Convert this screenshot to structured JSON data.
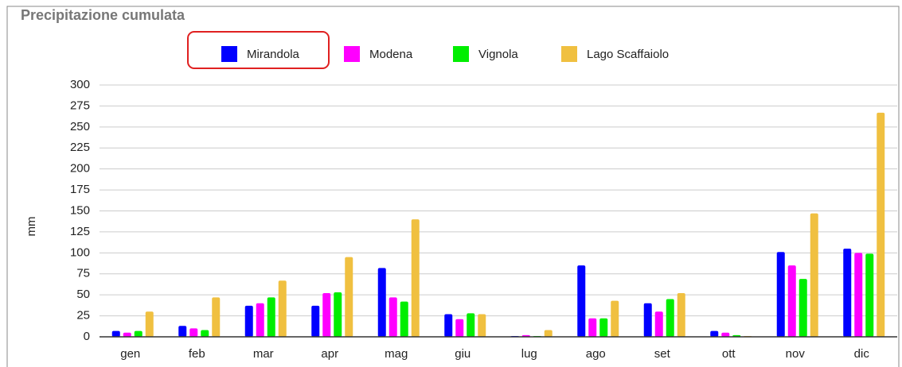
{
  "chart_data": {
    "type": "bar",
    "title": "Precipitazione cumulata",
    "y_label": "mm",
    "categories": [
      "gen",
      "feb",
      "mar",
      "apr",
      "mag",
      "giu",
      "lug",
      "ago",
      "set",
      "ott",
      "nov",
      "dic"
    ],
    "series": [
      {
        "name": "Mirandola",
        "color": "#0000ff",
        "values": [
          7,
          13,
          37,
          37,
          82,
          27,
          1,
          85,
          40,
          7,
          101,
          105
        ]
      },
      {
        "name": "Modena",
        "color": "#ff00ff",
        "values": [
          5,
          10,
          40,
          52,
          47,
          21,
          2,
          22,
          30,
          5,
          85,
          100
        ]
      },
      {
        "name": "Vignola",
        "color": "#00ee00",
        "values": [
          7,
          8,
          47,
          53,
          42,
          28,
          1,
          22,
          45,
          2,
          69,
          99
        ]
      },
      {
        "name": "Lago Scaffaiolo",
        "color": "#f0c040",
        "values": [
          30,
          47,
          67,
          95,
          140,
          27,
          8,
          43,
          52,
          1,
          147,
          267
        ]
      }
    ],
    "ylim": [
      0,
      300
    ],
    "yticks": [
      0,
      25,
      50,
      75,
      100,
      125,
      150,
      175,
      200,
      225,
      250,
      275,
      300
    ],
    "grid": true
  }
}
